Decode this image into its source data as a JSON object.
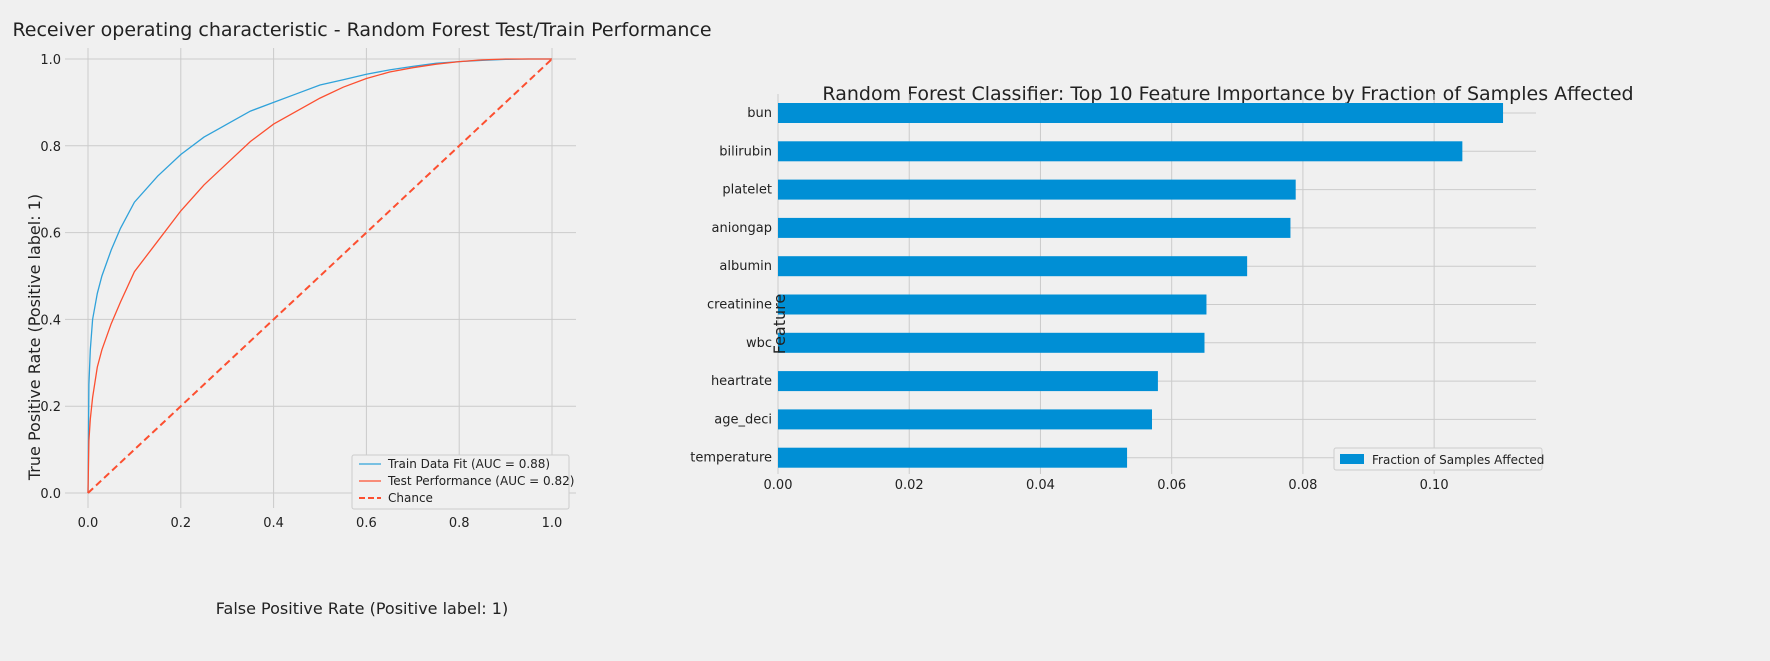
{
  "chart_data": [
    {
      "type": "line",
      "title": "Receiver operating characteristic - Random Forest Test/Train Performance",
      "xlabel": "False Positive Rate (Positive label: 1)",
      "ylabel": "True Positive Rate (Positive label: 1)",
      "xlim": [
        0.0,
        1.0
      ],
      "ylim": [
        0.0,
        1.0
      ],
      "xticks": [
        "0.0",
        "0.2",
        "0.4",
        "0.6",
        "0.8",
        "1.0"
      ],
      "yticks": [
        "0.0",
        "0.2",
        "0.4",
        "0.6",
        "0.8",
        "1.0"
      ],
      "grid": true,
      "legend_position": "lower-right",
      "series": [
        {
          "name": "Train Data Fit (AUC = 0.88)",
          "color": "#30a2da",
          "style": "solid",
          "x": [
            0,
            0.002,
            0.005,
            0.01,
            0.02,
            0.03,
            0.05,
            0.07,
            0.1,
            0.15,
            0.2,
            0.25,
            0.3,
            0.35,
            0.4,
            0.45,
            0.5,
            0.55,
            0.6,
            0.65,
            0.7,
            0.75,
            0.8,
            0.85,
            0.9,
            0.95,
            1.0
          ],
          "y": [
            0,
            0.25,
            0.33,
            0.4,
            0.46,
            0.5,
            0.56,
            0.61,
            0.67,
            0.73,
            0.78,
            0.82,
            0.85,
            0.88,
            0.9,
            0.92,
            0.94,
            0.952,
            0.965,
            0.975,
            0.983,
            0.99,
            0.994,
            0.997,
            0.999,
            1.0,
            1.0
          ]
        },
        {
          "name": "Test Performance (AUC = 0.82)",
          "color": "#fc4f30",
          "style": "solid",
          "x": [
            0,
            0.002,
            0.005,
            0.01,
            0.02,
            0.03,
            0.05,
            0.07,
            0.1,
            0.15,
            0.2,
            0.25,
            0.3,
            0.35,
            0.4,
            0.45,
            0.5,
            0.55,
            0.6,
            0.65,
            0.7,
            0.75,
            0.8,
            0.85,
            0.9,
            0.95,
            1.0
          ],
          "y": [
            0,
            0.12,
            0.17,
            0.22,
            0.29,
            0.33,
            0.39,
            0.44,
            0.51,
            0.58,
            0.65,
            0.71,
            0.76,
            0.81,
            0.85,
            0.88,
            0.91,
            0.935,
            0.955,
            0.97,
            0.98,
            0.988,
            0.994,
            0.998,
            1.0,
            1.0,
            1.0
          ]
        },
        {
          "name": "Chance",
          "color": "#fc4f30",
          "style": "dashed",
          "x": [
            0,
            1
          ],
          "y": [
            0,
            1
          ]
        }
      ]
    },
    {
      "type": "bar",
      "orientation": "horizontal",
      "title": "Random Forest Classifier: Top 10 Feature Importance by Fraction of Samples Affected",
      "ylabel": "Feature",
      "xlabel": "",
      "xlim": [
        0.0,
        0.114
      ],
      "xticks": [
        "0.00",
        "0.02",
        "0.04",
        "0.06",
        "0.08",
        "0.10"
      ],
      "grid": true,
      "legend_position": "lower-right",
      "categories": [
        "bun",
        "bilirubin",
        "platelet",
        "aniongap",
        "albumin",
        "creatinine",
        "wbc",
        "heartrate",
        "age_deci",
        "temperature"
      ],
      "series": [
        {
          "name": "Fraction of Samples Affected",
          "color": "#008fd5",
          "values": [
            0.1105,
            0.1043,
            0.0789,
            0.0781,
            0.0715,
            0.0653,
            0.065,
            0.0579,
            0.057,
            0.0532
          ]
        }
      ]
    }
  ]
}
